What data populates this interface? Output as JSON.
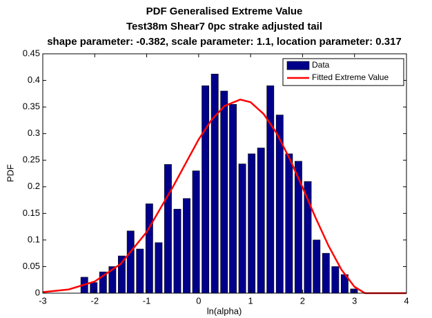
{
  "chart_data": {
    "type": "bar",
    "title": [
      "PDF Generalised Extreme Value",
      "Test38m Shear7 0pc strake adjusted tail",
      "shape parameter: -0.382, scale parameter: 1.1, location parameter: 0.317"
    ],
    "x_label": "ln(alpha)",
    "y_label": "PDF",
    "xlim": [
      -3,
      4
    ],
    "xticks": [
      -3,
      -2,
      -1,
      0,
      1,
      2,
      3,
      4
    ],
    "ylim": [
      0,
      0.45
    ],
    "yticks": [
      0,
      0.05,
      0.1,
      0.15,
      0.2,
      0.25,
      0.3,
      0.35,
      0.4,
      0.45
    ],
    "legend": "top-right",
    "series": [
      {
        "name": "Data",
        "type": "bar",
        "color": "#00008b",
        "x": [
          -2.2,
          -2.02,
          -1.84,
          -1.66,
          -1.48,
          -1.31,
          -1.13,
          -0.95,
          -0.77,
          -0.59,
          -0.41,
          -0.23,
          -0.05,
          0.13,
          0.31,
          0.49,
          0.66,
          0.84,
          1.02,
          1.2,
          1.38,
          1.56,
          1.74,
          1.92,
          2.1,
          2.27,
          2.45,
          2.63,
          2.81,
          2.99
        ],
        "values": [
          0.03,
          0.02,
          0.04,
          0.05,
          0.07,
          0.117,
          0.083,
          0.168,
          0.095,
          0.242,
          0.158,
          0.178,
          0.23,
          0.39,
          0.412,
          0.38,
          0.355,
          0.243,
          0.262,
          0.273,
          0.39,
          0.335,
          0.262,
          0.248,
          0.21,
          0.1,
          0.075,
          0.05,
          0.035,
          0.008
        ]
      },
      {
        "name": "Fitted Extreme Value",
        "type": "line",
        "color": "#ff0000",
        "x": [
          -3,
          -2.5,
          -2,
          -1.5,
          -1,
          -0.5,
          0,
          0.25,
          0.5,
          0.8,
          1,
          1.25,
          1.5,
          1.75,
          2,
          2.25,
          2.5,
          2.75,
          3,
          3.2,
          4
        ],
        "values": [
          0.002,
          0.007,
          0.022,
          0.055,
          0.115,
          0.199,
          0.289,
          0.326,
          0.352,
          0.364,
          0.359,
          0.337,
          0.301,
          0.253,
          0.199,
          0.142,
          0.089,
          0.044,
          0.012,
          0,
          0
        ]
      }
    ]
  }
}
